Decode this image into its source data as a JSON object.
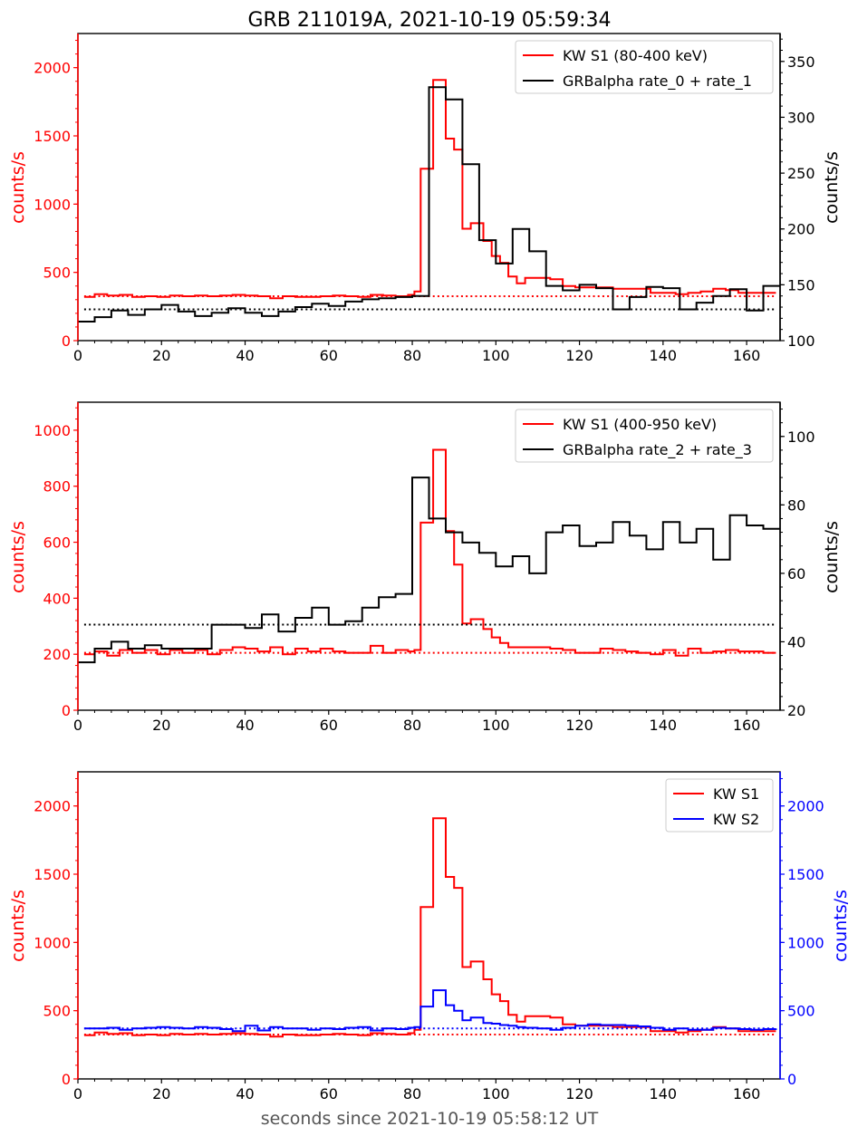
{
  "figure": {
    "title": "GRB 211019A, 2021-10-19 05:59:34",
    "xlabel": "seconds since 2021-10-19 05:58:12 UT"
  },
  "colors": {
    "red": "#ff0000",
    "black": "#000000",
    "blue": "#0000ff"
  },
  "chart_data": [
    {
      "type": "line",
      "style": "step",
      "xlim": [
        0,
        168
      ],
      "xticks": [
        0,
        20,
        40,
        60,
        80,
        100,
        120,
        140,
        160
      ],
      "ylim_left": [
        0,
        2250
      ],
      "yticks_left": [
        0,
        500,
        1000,
        1500,
        2000
      ],
      "ylabel_left": "counts/s",
      "ylim_right": [
        100,
        375
      ],
      "yticks_right": [
        100,
        150,
        200,
        250,
        300,
        350
      ],
      "ylabel_right": "counts/s",
      "legend": "top-right",
      "series": [
        {
          "name": "KW S1 (80-400 keV)",
          "axis": "left",
          "color": "#ff0000",
          "background": 325,
          "x": [
            1.5,
            4,
            7,
            10,
            13,
            16,
            19,
            22,
            25,
            28,
            31,
            34,
            37,
            40,
            43,
            46,
            49,
            52,
            55,
            58,
            61,
            64,
            67,
            70,
            73,
            76,
            79,
            80.5,
            82,
            85,
            88,
            90,
            92,
            94,
            97,
            99,
            101,
            103,
            105,
            107,
            110,
            113,
            116,
            119,
            122,
            125,
            128,
            131,
            134,
            137,
            140,
            143,
            146,
            149,
            152,
            155,
            158,
            161,
            164,
            167
          ],
          "values": [
            320,
            340,
            330,
            335,
            320,
            325,
            320,
            330,
            325,
            330,
            325,
            330,
            335,
            330,
            325,
            310,
            325,
            320,
            320,
            325,
            330,
            325,
            320,
            335,
            330,
            325,
            335,
            360,
            1260,
            1910,
            1480,
            1400,
            820,
            860,
            730,
            620,
            570,
            470,
            420,
            460,
            460,
            450,
            400,
            390,
            390,
            390,
            380,
            380,
            380,
            350,
            350,
            340,
            350,
            360,
            380,
            370,
            350,
            350,
            350,
            350
          ]
        },
        {
          "name": "GRBalpha rate_0 + rate_1",
          "axis": "right",
          "color": "#000000",
          "background": 128,
          "x": [
            0,
            4,
            8,
            12,
            16,
            20,
            24,
            28,
            32,
            36,
            40,
            44,
            48,
            52,
            56,
            60,
            64,
            68,
            72,
            76,
            80,
            84,
            88,
            92,
            96,
            100,
            104,
            108,
            112,
            116,
            120,
            124,
            128,
            132,
            136,
            140,
            144,
            148,
            152,
            156,
            160,
            164,
            168
          ],
          "values": [
            117,
            121,
            127,
            123,
            128,
            132,
            126,
            122,
            125,
            129,
            125,
            122,
            126,
            130,
            133,
            131,
            135,
            137,
            138,
            139,
            140,
            327,
            316,
            258,
            190,
            169,
            200,
            180,
            149,
            145,
            150,
            147,
            128,
            139,
            148,
            147,
            128,
            134,
            140,
            146,
            127,
            149,
            149
          ]
        }
      ]
    },
    {
      "type": "line",
      "style": "step",
      "xlim": [
        0,
        168
      ],
      "xticks": [
        0,
        20,
        40,
        60,
        80,
        100,
        120,
        140,
        160
      ],
      "ylim_left": [
        0,
        1100
      ],
      "yticks_left": [
        0,
        200,
        400,
        600,
        800,
        1000
      ],
      "ylabel_left": "counts/s",
      "ylim_right": [
        20,
        110
      ],
      "yticks_right": [
        20,
        40,
        60,
        80,
        100
      ],
      "ylabel_right": "counts/s",
      "legend": "top-right",
      "series": [
        {
          "name": "KW S1 (400-950 keV)",
          "axis": "left",
          "color": "#ff0000",
          "background": 205,
          "x": [
            1.5,
            4,
            7,
            10,
            13,
            16,
            19,
            22,
            25,
            28,
            31,
            34,
            37,
            40,
            43,
            46,
            49,
            52,
            55,
            58,
            61,
            64,
            67,
            70,
            73,
            76,
            79,
            80.5,
            82,
            85,
            88,
            90,
            92,
            94,
            97,
            99,
            101,
            103,
            105,
            107,
            110,
            113,
            116,
            119,
            122,
            125,
            128,
            131,
            134,
            137,
            140,
            143,
            146,
            149,
            152,
            155,
            158,
            161,
            164,
            167
          ],
          "values": [
            200,
            210,
            195,
            215,
            205,
            215,
            200,
            215,
            205,
            215,
            200,
            215,
            225,
            220,
            210,
            225,
            200,
            220,
            210,
            220,
            210,
            205,
            205,
            230,
            205,
            215,
            210,
            215,
            670,
            930,
            640,
            520,
            310,
            325,
            290,
            260,
            240,
            225,
            225,
            225,
            225,
            220,
            215,
            205,
            205,
            220,
            215,
            210,
            205,
            200,
            215,
            195,
            220,
            205,
            210,
            215,
            210,
            210,
            205,
            205
          ]
        },
        {
          "name": "GRBalpha rate_2 + rate_3",
          "axis": "right",
          "color": "#000000",
          "background": 45,
          "x": [
            0,
            4,
            8,
            12,
            16,
            20,
            24,
            28,
            32,
            36,
            40,
            44,
            48,
            52,
            56,
            60,
            64,
            68,
            72,
            76,
            80,
            84,
            88,
            92,
            96,
            100,
            104,
            108,
            112,
            116,
            120,
            124,
            128,
            132,
            136,
            140,
            144,
            148,
            152,
            156,
            160,
            164,
            168
          ],
          "values": [
            34,
            38,
            40,
            38,
            39,
            38,
            38,
            38,
            45,
            45,
            44,
            48,
            43,
            47,
            50,
            45,
            46,
            50,
            53,
            54,
            88,
            76,
            72,
            69,
            66,
            62,
            65,
            60,
            72,
            74,
            68,
            69,
            75,
            71,
            67,
            75,
            69,
            73,
            64,
            77,
            74,
            73,
            73
          ]
        }
      ]
    },
    {
      "type": "line",
      "style": "step",
      "xlim": [
        0,
        168
      ],
      "xticks": [
        0,
        20,
        40,
        60,
        80,
        100,
        120,
        140,
        160
      ],
      "ylim_left": [
        0,
        2250
      ],
      "yticks_left": [
        0,
        500,
        1000,
        1500,
        2000
      ],
      "ylabel_left": "counts/s",
      "ylim_right": [
        0,
        2250
      ],
      "yticks_right": [
        0,
        500,
        1000,
        1500,
        2000
      ],
      "ylabel_right": "counts/s",
      "legend": "top-right",
      "series": [
        {
          "name": "KW S1",
          "axis": "left",
          "color": "#ff0000",
          "background": 325,
          "x": [
            1.5,
            4,
            7,
            10,
            13,
            16,
            19,
            22,
            25,
            28,
            31,
            34,
            37,
            40,
            43,
            46,
            49,
            52,
            55,
            58,
            61,
            64,
            67,
            70,
            73,
            76,
            79,
            80.5,
            82,
            85,
            88,
            90,
            92,
            94,
            97,
            99,
            101,
            103,
            105,
            107,
            110,
            113,
            116,
            119,
            122,
            125,
            128,
            131,
            134,
            137,
            140,
            143,
            146,
            149,
            152,
            155,
            158,
            161,
            164,
            167
          ],
          "values": [
            320,
            340,
            330,
            335,
            320,
            325,
            320,
            330,
            325,
            330,
            325,
            330,
            335,
            330,
            325,
            310,
            325,
            320,
            320,
            325,
            330,
            325,
            320,
            335,
            330,
            325,
            335,
            360,
            1260,
            1910,
            1480,
            1400,
            820,
            860,
            730,
            620,
            570,
            470,
            420,
            460,
            460,
            450,
            400,
            390,
            390,
            390,
            380,
            380,
            380,
            350,
            350,
            340,
            350,
            360,
            380,
            370,
            350,
            350,
            350,
            350
          ]
        },
        {
          "name": "KW S2",
          "axis": "right",
          "color": "#0000ff",
          "background": 370,
          "x": [
            1.5,
            4,
            7,
            10,
            13,
            16,
            19,
            22,
            25,
            28,
            31,
            34,
            37,
            40,
            43,
            46,
            49,
            52,
            55,
            58,
            61,
            64,
            67,
            70,
            73,
            76,
            79,
            80.5,
            82,
            85,
            88,
            90,
            92,
            94,
            97,
            99,
            101,
            103,
            105,
            107,
            110,
            113,
            116,
            119,
            122,
            125,
            128,
            131,
            134,
            137,
            140,
            143,
            146,
            149,
            152,
            155,
            158,
            161,
            164,
            167
          ],
          "values": [
            370,
            370,
            375,
            360,
            370,
            375,
            380,
            375,
            370,
            380,
            375,
            365,
            350,
            390,
            355,
            380,
            370,
            370,
            360,
            370,
            365,
            375,
            380,
            355,
            370,
            365,
            375,
            380,
            530,
            650,
            540,
            500,
            430,
            450,
            410,
            405,
            395,
            390,
            380,
            375,
            370,
            360,
            375,
            390,
            400,
            395,
            395,
            390,
            385,
            375,
            360,
            370,
            360,
            360,
            375,
            370,
            365,
            360,
            365,
            370
          ]
        }
      ]
    }
  ]
}
